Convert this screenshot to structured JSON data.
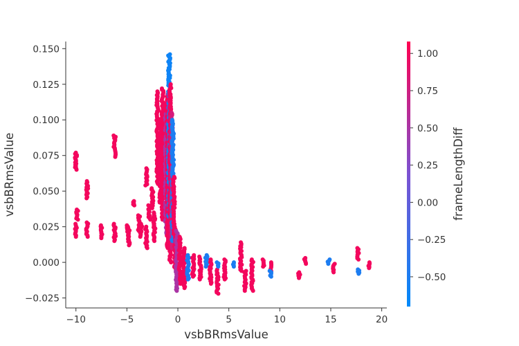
{
  "chart_data": {
    "type": "scatter",
    "xlabel": "vsbBRmsValue",
    "ylabel": "vsbBRmsValue",
    "xlim": [
      -11,
      20.5
    ],
    "ylim": [
      -0.032,
      0.155
    ],
    "x_ticks": [
      -10,
      -5,
      0,
      5,
      10,
      15,
      20
    ],
    "x_tick_labels": [
      "−10",
      "−5",
      "0",
      "5",
      "10",
      "15",
      "20"
    ],
    "y_ticks": [
      -0.025,
      0,
      0.025,
      0.05,
      0.075,
      0.1,
      0.125,
      0.15
    ],
    "y_tick_labels": [
      "−0.025",
      "0.000",
      "0.025",
      "0.050",
      "0.075",
      "0.100",
      "0.125",
      "0.150"
    ],
    "grid": false,
    "colorbar": {
      "label": "frameLengthDiff",
      "range": [
        -0.7,
        1.08
      ],
      "ticks": [
        1.0,
        0.75,
        0.5,
        0.25,
        0.0,
        -0.25,
        -0.5
      ],
      "tick_labels": [
        "1.00",
        "0.75",
        "0.50",
        "0.25",
        "0.00",
        "−0.25",
        "−0.50"
      ],
      "low_color": "#008AFA",
      "mid_color": "#7C52D2",
      "high_color": "#FF0051"
    },
    "point_groups": [
      {
        "x": -10,
        "y_min": 0.018,
        "y_max": 0.027,
        "color_value": 1
      },
      {
        "x": -10,
        "y_min": 0.065,
        "y_max": 0.077,
        "color_value": 1
      },
      {
        "x": -9.9,
        "y_min": 0.03,
        "y_max": 0.037,
        "color_value": 1
      },
      {
        "x": -8.9,
        "y_min": 0.045,
        "y_max": 0.057,
        "color_value": 1
      },
      {
        "x": -8.9,
        "y_min": 0.018,
        "y_max": 0.028,
        "color_value": 1
      },
      {
        "x": -7.5,
        "y_min": 0.017,
        "y_max": 0.026,
        "color_value": 1
      },
      {
        "x": -6.2,
        "y_min": 0.074,
        "y_max": 0.089,
        "color_value": 1
      },
      {
        "x": -6.2,
        "y_min": 0.015,
        "y_max": 0.027,
        "color_value": 1
      },
      {
        "x": -4.9,
        "y_min": 0.018,
        "y_max": 0.026,
        "color_value": 1
      },
      {
        "x": -4.8,
        "y_min": 0.012,
        "y_max": 0.025,
        "color_value": 1
      },
      {
        "x": -4.3,
        "y_min": 0.04,
        "y_max": 0.043,
        "color_value": 1
      },
      {
        "x": -3.8,
        "y_min": 0.022,
        "y_max": 0.033,
        "color_value": 1
      },
      {
        "x": -3.6,
        "y_min": 0.018,
        "y_max": 0.027,
        "color_value": 1
      },
      {
        "x": -3.1,
        "y_min": 0.054,
        "y_max": 0.066,
        "color_value": 1
      },
      {
        "x": -3.1,
        "y_min": 0.01,
        "y_max": 0.025,
        "color_value": 1
      },
      {
        "x": -2.8,
        "y_min": 0.03,
        "y_max": 0.04,
        "color_value": 1
      },
      {
        "x": -2.5,
        "y_min": 0.038,
        "y_max": 0.052,
        "color_value": 1
      },
      {
        "x": -2.3,
        "y_min": 0.015,
        "y_max": 0.035,
        "color_value": 1
      },
      {
        "x": -2.0,
        "y_min": 0.055,
        "y_max": 0.12,
        "color_value": 1
      },
      {
        "x": -1.7,
        "y_min": 0.042,
        "y_max": 0.1,
        "color_value": 1
      },
      {
        "x": -1.5,
        "y_min": 0.03,
        "y_max": 0.122,
        "color_value": 1
      },
      {
        "x": -1.3,
        "y_min": 0.045,
        "y_max": 0.11,
        "color_value": 1
      },
      {
        "x": -1.15,
        "y_min": 0.02,
        "y_max": 0.105,
        "color_value": 0.5
      },
      {
        "x": -1.0,
        "y_min": 0.01,
        "y_max": 0.118,
        "color_value": 1
      },
      {
        "x": -0.85,
        "y_min": 0.03,
        "y_max": 0.146,
        "color_value": -0.6
      },
      {
        "x": -0.75,
        "y_min": 0.0,
        "y_max": 0.125,
        "color_value": 1
      },
      {
        "x": -0.6,
        "y_min": 0.01,
        "y_max": 0.105,
        "color_value": 0.8
      },
      {
        "x": -0.5,
        "y_min": 0.015,
        "y_max": 0.1,
        "color_value": -0.5
      },
      {
        "x": -0.4,
        "y_min": 0.02,
        "y_max": 0.06,
        "color_value": 1
      },
      {
        "x": -0.25,
        "y_min": -0.005,
        "y_max": 0.025,
        "color_value": 1
      },
      {
        "x": -0.1,
        "y_min": -0.02,
        "y_max": 0.022,
        "color_value": 0.5
      },
      {
        "x": 0.2,
        "y_min": -0.015,
        "y_max": 0.018,
        "color_value": 1
      },
      {
        "x": 0.6,
        "y_min": -0.018,
        "y_max": 0.01,
        "color_value": 1
      },
      {
        "x": 1.0,
        "y_min": -0.012,
        "y_max": 0.005,
        "color_value": -0.5
      },
      {
        "x": 1.5,
        "y_min": -0.01,
        "y_max": 0.005,
        "color_value": 1
      },
      {
        "x": 2.2,
        "y_min": -0.012,
        "y_max": 0.004,
        "color_value": 1
      },
      {
        "x": 2.8,
        "y_min": -0.003,
        "y_max": 0.005,
        "color_value": -0.5
      },
      {
        "x": 3.2,
        "y_min": -0.015,
        "y_max": 0.002,
        "color_value": 1
      },
      {
        "x": 3.9,
        "y_min": -0.022,
        "y_max": -0.005,
        "color_value": 1
      },
      {
        "x": 3.9,
        "y_min": -0.003,
        "y_max": 0.0,
        "color_value": -0.5
      },
      {
        "x": 4.6,
        "y_min": -0.012,
        "y_max": 0.002,
        "color_value": 1
      },
      {
        "x": 5.4,
        "y_min": -0.003,
        "y_max": 0.0,
        "color_value": -0.5
      },
      {
        "x": 6.2,
        "y_min": -0.006,
        "y_max": 0.014,
        "color_value": 1
      },
      {
        "x": 6.6,
        "y_min": -0.02,
        "y_max": -0.006,
        "color_value": 1
      },
      {
        "x": 7.3,
        "y_min": -0.02,
        "y_max": 0.002,
        "color_value": 1
      },
      {
        "x": 8.4,
        "y_min": -0.003,
        "y_max": 0.002,
        "color_value": 1
      },
      {
        "x": 9.1,
        "y_min": -0.007,
        "y_max": 0.0,
        "color_value": 1
      },
      {
        "x": 9.1,
        "y_min": -0.01,
        "y_max": -0.006,
        "color_value": -0.5
      },
      {
        "x": 11.9,
        "y_min": -0.011,
        "y_max": -0.007,
        "color_value": 1
      },
      {
        "x": 12.5,
        "y_min": -0.001,
        "y_max": 0.003,
        "color_value": 1
      },
      {
        "x": 14.8,
        "y_min": -0.001,
        "y_max": 0.002,
        "color_value": -0.5
      },
      {
        "x": 15.3,
        "y_min": -0.007,
        "y_max": -0.001,
        "color_value": 1
      },
      {
        "x": 17.7,
        "y_min": 0.002,
        "y_max": 0.01,
        "color_value": 1
      },
      {
        "x": 17.7,
        "y_min": -0.008,
        "y_max": -0.005,
        "color_value": -0.5
      },
      {
        "x": 18.8,
        "y_min": -0.004,
        "y_max": 0.0,
        "color_value": 1
      }
    ]
  }
}
